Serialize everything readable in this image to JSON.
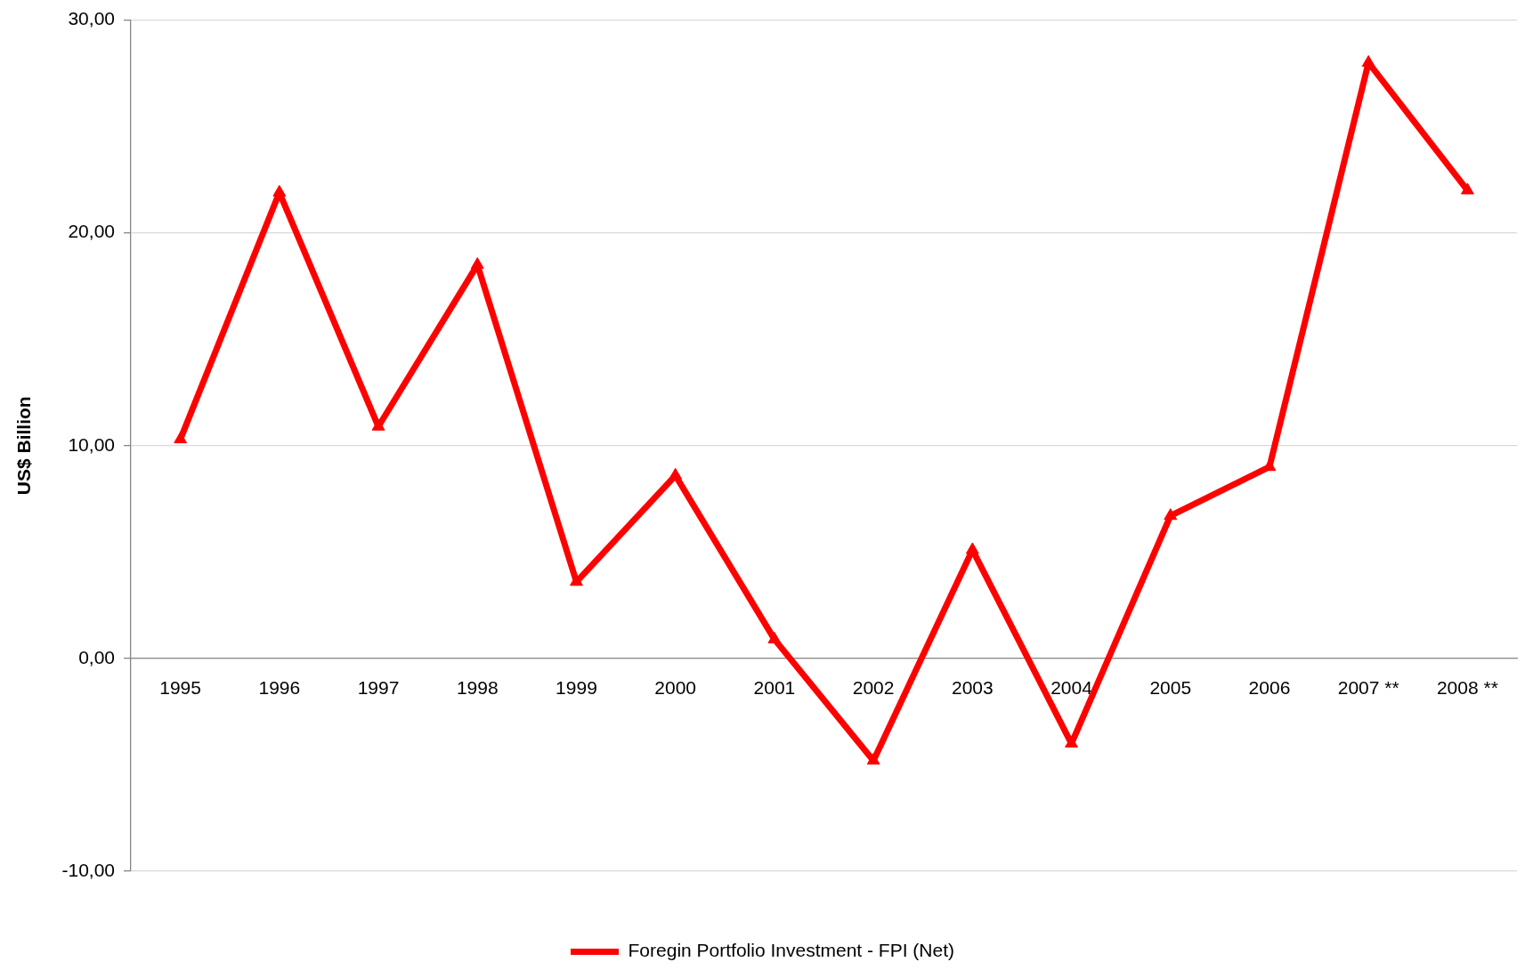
{
  "chart_data": {
    "type": "line",
    "ylabel": "US$ Billion",
    "categories": [
      "1995",
      "1996",
      "1997",
      "1998",
      "1999",
      "2000",
      "2001",
      "2002",
      "2003",
      "2004",
      "2005",
      "2006",
      "2007 **",
      "2008 **"
    ],
    "series": [
      {
        "name": "Foregin Portfolio Investment - FPI (Net)",
        "color": "#ff0000",
        "values": [
          10.3,
          21.9,
          10.9,
          18.5,
          3.6,
          8.6,
          0.9,
          -4.8,
          5.1,
          -4.0,
          6.7,
          9.0,
          28.0,
          22.0
        ]
      }
    ],
    "ylim": [
      -10,
      30
    ],
    "yticks": [
      {
        "value": -10,
        "label": "-10,00"
      },
      {
        "value": 0,
        "label": "0,00"
      },
      {
        "value": 10,
        "label": "10,00"
      },
      {
        "value": 20,
        "label": "20,00"
      },
      {
        "value": 30,
        "label": "30,00"
      }
    ],
    "grid": "y",
    "legend": "bottom",
    "marker": "triangle",
    "line_style": "solid"
  }
}
